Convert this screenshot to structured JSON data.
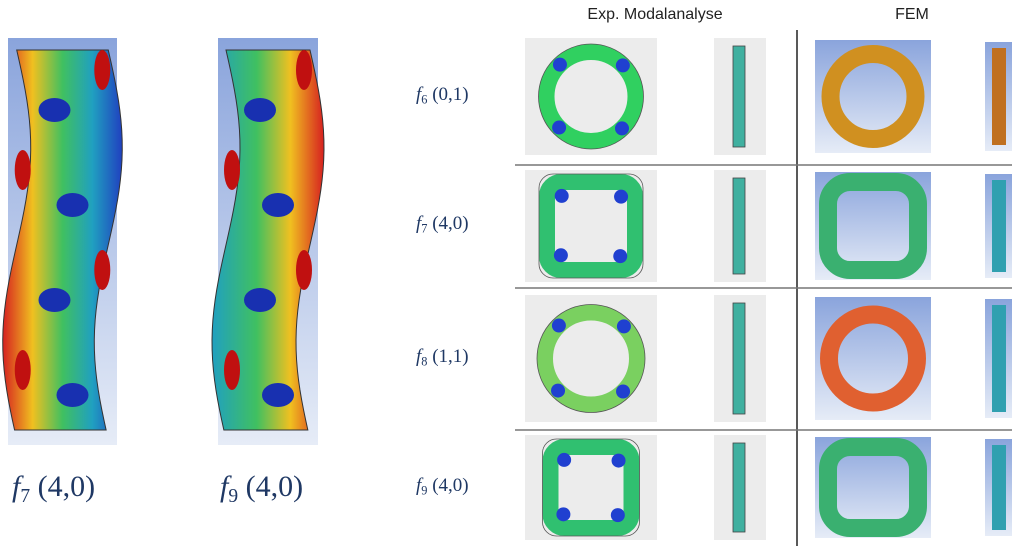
{
  "left_panels": [
    {
      "symbol": "f",
      "index": "7",
      "mode": "(4,0)"
    },
    {
      "symbol": "f",
      "index": "9",
      "mode": "(4,0)"
    }
  ],
  "table": {
    "headers": [
      "Exp. Modalanalyse",
      "FEM"
    ],
    "rows": [
      {
        "symbol": "f",
        "index": "6",
        "mode": "(0,1)"
      },
      {
        "symbol": "f",
        "index": "7",
        "mode": "(4,0)"
      },
      {
        "symbol": "f",
        "index": "8",
        "mode": "(1,1)"
      },
      {
        "symbol": "f",
        "index": "9",
        "mode": "(4,0)"
      }
    ]
  }
}
